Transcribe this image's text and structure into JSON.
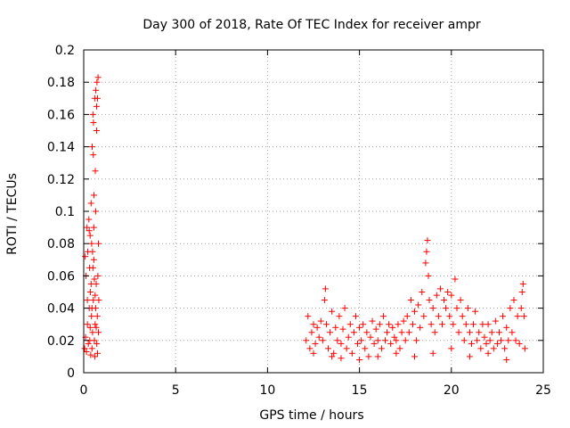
{
  "chart_data": {
    "type": "scatter",
    "title": "Day 300 of 2018, Rate Of TEC Index for receiver ampr",
    "xlabel": "GPS time / hours",
    "ylabel": "ROTI / TECUs",
    "xlim": [
      0,
      25
    ],
    "ylim": [
      0,
      0.2
    ],
    "xticks": [
      0,
      5,
      10,
      15,
      20,
      25
    ],
    "yticks": [
      0,
      0.02,
      0.04,
      0.06,
      0.08,
      0.1,
      0.12,
      0.14,
      0.16,
      0.18,
      0.2
    ],
    "xtick_labels": [
      "0",
      "5",
      "10",
      "15",
      "20",
      "25"
    ],
    "ytick_labels": [
      "0",
      "0.02",
      "0.04",
      "0.06",
      "0.08",
      "0.1",
      "0.12",
      "0.14",
      "0.16",
      "0.18",
      "0.2"
    ],
    "grid": true,
    "marker": "+",
    "color": "#ff0000",
    "series": [
      {
        "points": [
          [
            0.05,
            0.015
          ],
          [
            0.08,
            0.072
          ],
          [
            0.1,
            0.022
          ],
          [
            0.12,
            0.06
          ],
          [
            0.15,
            0.013
          ],
          [
            0.18,
            0.09
          ],
          [
            0.2,
            0.03
          ],
          [
            0.22,
            0.075
          ],
          [
            0.25,
            0.018
          ],
          [
            0.28,
            0.095
          ],
          [
            0.3,
            0.04
          ],
          [
            0.32,
            0.065
          ],
          [
            0.33,
            0.02
          ],
          [
            0.35,
            0.085
          ],
          [
            0.36,
            0.05
          ],
          [
            0.38,
            0.011
          ],
          [
            0.4,
            0.105
          ],
          [
            0.42,
            0.035
          ],
          [
            0.43,
            0.08
          ],
          [
            0.45,
            0.015
          ],
          [
            0.46,
            0.14
          ],
          [
            0.48,
            0.025
          ],
          [
            0.5,
            0.16
          ],
          [
            0.52,
            0.045
          ],
          [
            0.53,
            0.155
          ],
          [
            0.55,
            0.07
          ],
          [
            0.56,
            0.11
          ],
          [
            0.58,
            0.02
          ],
          [
            0.6,
            0.17
          ],
          [
            0.62,
            0.03
          ],
          [
            0.63,
            0.125
          ],
          [
            0.65,
            0.04
          ],
          [
            0.66,
            0.175
          ],
          [
            0.68,
            0.055
          ],
          [
            0.7,
            0.165
          ],
          [
            0.71,
            0.018
          ],
          [
            0.72,
            0.18
          ],
          [
            0.74,
            0.035
          ],
          [
            0.75,
            0.17
          ],
          [
            0.77,
            0.06
          ],
          [
            0.78,
            0.183
          ],
          [
            0.8,
            0.025
          ],
          [
            0.8,
            0.08
          ],
          [
            0.82,
            0.045
          ],
          [
            0.55,
            0.09
          ],
          [
            0.5,
            0.065
          ],
          [
            0.45,
            0.04
          ],
          [
            0.6,
            0.01
          ],
          [
            0.7,
            0.15
          ],
          [
            0.65,
            0.1
          ],
          [
            0.4,
            0.055
          ],
          [
            0.3,
            0.088
          ],
          [
            0.2,
            0.045
          ],
          [
            0.35,
            0.028
          ],
          [
            0.58,
            0.058
          ],
          [
            0.62,
            0.048
          ],
          [
            0.75,
            0.012
          ],
          [
            0.68,
            0.028
          ],
          [
            0.48,
            0.075
          ],
          [
            0.52,
            0.135
          ],
          [
            12.1,
            0.02
          ],
          [
            12.2,
            0.035
          ],
          [
            12.3,
            0.015
          ],
          [
            12.4,
            0.025
          ],
          [
            12.5,
            0.03
          ],
          [
            12.6,
            0.018
          ],
          [
            12.7,
            0.028
          ],
          [
            12.8,
            0.022
          ],
          [
            12.9,
            0.032
          ],
          [
            13.0,
            0.02
          ],
          [
            13.1,
            0.045
          ],
          [
            13.15,
            0.052
          ],
          [
            13.2,
            0.03
          ],
          [
            13.3,
            0.015
          ],
          [
            13.4,
            0.025
          ],
          [
            13.5,
            0.038
          ],
          [
            13.6,
            0.012
          ],
          [
            13.7,
            0.028
          ],
          [
            13.8,
            0.02
          ],
          [
            13.9,
            0.035
          ],
          [
            14.0,
            0.018
          ],
          [
            14.1,
            0.027
          ],
          [
            14.2,
            0.04
          ],
          [
            14.3,
            0.015
          ],
          [
            14.4,
            0.022
          ],
          [
            14.5,
            0.03
          ],
          [
            14.6,
            0.012
          ],
          [
            14.7,
            0.025
          ],
          [
            14.8,
            0.035
          ],
          [
            14.9,
            0.018
          ],
          [
            15.0,
            0.028
          ],
          [
            15.1,
            0.02
          ],
          [
            15.2,
            0.03
          ],
          [
            15.3,
            0.015
          ],
          [
            15.4,
            0.025
          ],
          [
            15.5,
            0.01
          ],
          [
            15.6,
            0.022
          ],
          [
            15.7,
            0.032
          ],
          [
            15.8,
            0.018
          ],
          [
            15.9,
            0.027
          ],
          [
            16.0,
            0.02
          ],
          [
            16.1,
            0.03
          ],
          [
            16.2,
            0.015
          ],
          [
            16.3,
            0.035
          ],
          [
            16.4,
            0.02
          ],
          [
            16.5,
            0.025
          ],
          [
            16.6,
            0.03
          ],
          [
            16.7,
            0.018
          ],
          [
            16.8,
            0.028
          ],
          [
            16.9,
            0.022
          ],
          [
            17.0,
            0.02
          ],
          [
            17.1,
            0.03
          ],
          [
            17.2,
            0.015
          ],
          [
            17.3,
            0.025
          ],
          [
            17.4,
            0.032
          ],
          [
            17.5,
            0.02
          ],
          [
            17.6,
            0.035
          ],
          [
            17.7,
            0.025
          ],
          [
            17.8,
            0.045
          ],
          [
            17.9,
            0.03
          ],
          [
            18.0,
            0.038
          ],
          [
            18.1,
            0.02
          ],
          [
            18.2,
            0.042
          ],
          [
            18.3,
            0.028
          ],
          [
            18.4,
            0.05
          ],
          [
            18.5,
            0.035
          ],
          [
            18.6,
            0.068
          ],
          [
            18.65,
            0.075
          ],
          [
            18.7,
            0.082
          ],
          [
            18.75,
            0.06
          ],
          [
            18.8,
            0.045
          ],
          [
            18.9,
            0.03
          ],
          [
            19.0,
            0.04
          ],
          [
            19.1,
            0.025
          ],
          [
            19.2,
            0.048
          ],
          [
            19.3,
            0.035
          ],
          [
            19.4,
            0.052
          ],
          [
            19.5,
            0.03
          ],
          [
            19.6,
            0.045
          ],
          [
            19.7,
            0.04
          ],
          [
            19.8,
            0.05
          ],
          [
            19.9,
            0.035
          ],
          [
            20.0,
            0.048
          ],
          [
            20.1,
            0.03
          ],
          [
            20.2,
            0.058
          ],
          [
            20.3,
            0.04
          ],
          [
            20.4,
            0.025
          ],
          [
            20.5,
            0.045
          ],
          [
            20.6,
            0.035
          ],
          [
            20.7,
            0.02
          ],
          [
            20.8,
            0.03
          ],
          [
            20.9,
            0.04
          ],
          [
            21.0,
            0.025
          ],
          [
            21.1,
            0.018
          ],
          [
            21.2,
            0.03
          ],
          [
            21.3,
            0.038
          ],
          [
            21.4,
            0.02
          ],
          [
            21.5,
            0.025
          ],
          [
            21.6,
            0.015
          ],
          [
            21.7,
            0.03
          ],
          [
            21.8,
            0.022
          ],
          [
            21.9,
            0.018
          ],
          [
            22.0,
            0.03
          ],
          [
            22.1,
            0.02
          ],
          [
            22.2,
            0.025
          ],
          [
            22.3,
            0.015
          ],
          [
            22.4,
            0.032
          ],
          [
            22.5,
            0.018
          ],
          [
            22.6,
            0.025
          ],
          [
            22.7,
            0.02
          ],
          [
            22.8,
            0.035
          ],
          [
            22.9,
            0.015
          ],
          [
            23.0,
            0.028
          ],
          [
            23.1,
            0.02
          ],
          [
            23.2,
            0.04
          ],
          [
            23.3,
            0.025
          ],
          [
            23.4,
            0.045
          ],
          [
            23.5,
            0.02
          ],
          [
            23.6,
            0.035
          ],
          [
            23.7,
            0.018
          ],
          [
            23.8,
            0.04
          ],
          [
            23.85,
            0.05
          ],
          [
            23.9,
            0.055
          ],
          [
            23.95,
            0.035
          ],
          [
            24.0,
            0.015
          ],
          [
            23.0,
            0.008
          ],
          [
            22.0,
            0.012
          ],
          [
            21.0,
            0.01
          ],
          [
            20.0,
            0.015
          ],
          [
            19.0,
            0.012
          ],
          [
            18.0,
            0.01
          ],
          [
            17.0,
            0.012
          ],
          [
            16.0,
            0.01
          ],
          [
            15.0,
            0.008
          ],
          [
            14.0,
            0.009
          ],
          [
            13.5,
            0.01
          ],
          [
            12.5,
            0.012
          ]
        ]
      }
    ]
  }
}
